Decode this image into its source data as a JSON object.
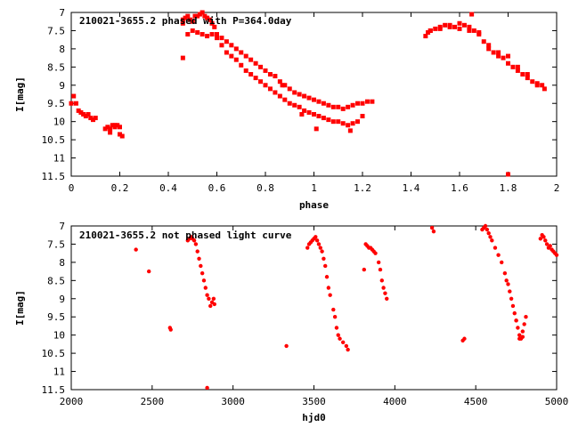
{
  "chart_data": [
    {
      "type": "scatter",
      "title": "210021-3655.2 phased with P=364.0day",
      "xlabel": "phase",
      "ylabel": "I[mag]",
      "xlim": [
        0,
        2
      ],
      "ylim": [
        11.5,
        7
      ],
      "y_inverted": true,
      "xticks": [
        "0",
        "0.2",
        "0.4",
        "0.6",
        "0.8",
        "1",
        "1.2",
        "1.4",
        "1.6",
        "1.8",
        "2"
      ],
      "yticks": [
        "7",
        "7.5",
        "8",
        "8.5",
        "9",
        "9.5",
        "10",
        "10.5",
        "11",
        "11.5"
      ],
      "grid": false,
      "marker_color": "#ff0000",
      "series": [
        {
          "x": [
            0.0,
            0.01,
            0.02,
            0.03,
            0.04,
            0.05,
            0.06,
            0.07,
            0.08,
            0.09,
            0.1,
            0.14,
            0.15,
            0.16,
            0.17,
            0.18,
            0.19,
            0.2,
            0.2,
            0.21,
            0.16,
            0.18,
            0.46,
            0.46,
            0.47,
            0.48,
            0.49,
            0.5,
            0.51,
            0.52,
            0.53,
            0.54,
            0.55,
            0.56,
            0.57,
            0.58,
            0.59,
            0.6,
            0.62,
            0.64,
            0.66,
            0.68,
            0.7,
            0.72,
            0.74,
            0.76,
            0.78,
            0.8,
            0.82,
            0.84,
            0.86,
            0.88,
            0.9,
            0.92,
            0.94,
            0.96,
            0.98,
            1.0,
            1.02,
            1.04,
            1.06,
            1.08,
            1.1,
            1.12,
            1.14,
            1.16,
            1.18,
            1.2,
            1.22,
            1.24,
            0.48,
            0.5,
            0.52,
            0.54,
            0.56,
            0.58,
            0.6,
            0.62,
            0.64,
            0.66,
            0.68,
            0.7,
            0.72,
            0.74,
            0.76,
            0.78,
            0.8,
            0.82,
            0.84,
            0.86,
            0.88,
            0.9,
            0.92,
            0.94,
            0.96,
            0.98,
            1.0,
            1.02,
            1.04,
            1.06,
            1.08,
            1.1,
            1.12,
            1.14,
            1.16,
            1.18,
            1.2,
            0.46,
            0.87,
            0.95,
            1.01,
            1.15,
            1.46,
            1.47,
            1.48,
            1.5,
            1.52,
            1.54,
            1.56,
            1.58,
            1.6,
            1.62,
            1.64,
            1.65,
            1.66,
            1.68,
            1.7,
            1.72,
            1.74,
            1.76,
            1.78,
            1.8,
            1.82,
            1.84,
            1.86,
            1.88,
            1.9,
            1.92,
            1.94,
            1.95,
            1.48,
            1.52,
            1.56,
            1.6,
            1.64,
            1.68,
            1.72,
            1.76,
            1.8,
            1.84,
            1.88,
            1.92,
            1.8
          ],
          "y": [
            9.5,
            9.3,
            9.5,
            9.7,
            9.75,
            9.8,
            9.85,
            9.8,
            9.9,
            9.95,
            9.9,
            10.2,
            10.15,
            10.2,
            10.1,
            10.15,
            10.1,
            10.15,
            10.35,
            10.4,
            10.3,
            10.1,
            7.2,
            7.3,
            7.15,
            7.1,
            7.2,
            7.25,
            7.1,
            7.1,
            7.05,
            7.0,
            7.1,
            7.15,
            7.2,
            7.3,
            7.4,
            7.6,
            7.7,
            7.8,
            7.9,
            8.0,
            8.1,
            8.2,
            8.3,
            8.4,
            8.5,
            8.6,
            8.7,
            8.75,
            8.9,
            9.0,
            9.1,
            9.2,
            9.25,
            9.3,
            9.35,
            9.4,
            9.45,
            9.5,
            9.55,
            9.6,
            9.6,
            9.65,
            9.6,
            9.55,
            9.5,
            9.5,
            9.45,
            9.45,
            7.6,
            7.5,
            7.55,
            7.6,
            7.65,
            7.6,
            7.7,
            7.9,
            8.1,
            8.2,
            8.3,
            8.45,
            8.6,
            8.7,
            8.8,
            8.9,
            9.0,
            9.1,
            9.2,
            9.3,
            9.4,
            9.5,
            9.55,
            9.6,
            9.7,
            9.75,
            9.8,
            9.85,
            9.9,
            9.95,
            10.0,
            10.0,
            10.05,
            10.1,
            10.05,
            10.0,
            9.85,
            8.25,
            9.0,
            9.8,
            10.2,
            10.25,
            7.65,
            7.55,
            7.5,
            7.45,
            7.4,
            7.35,
            7.4,
            7.4,
            7.3,
            7.35,
            7.4,
            7.05,
            7.5,
            7.6,
            7.8,
            8.0,
            8.1,
            8.2,
            8.25,
            8.4,
            8.5,
            8.6,
            8.7,
            8.8,
            8.9,
            9.0,
            9.0,
            9.1,
            7.5,
            7.45,
            7.35,
            7.45,
            7.5,
            7.55,
            7.9,
            8.1,
            8.2,
            8.5,
            8.7,
            8.95,
            11.45
          ]
        }
      ]
    },
    {
      "type": "scatter",
      "title": "210021-3655.2 not phased light curve",
      "xlabel": "hjd0",
      "ylabel": "I[mag]",
      "xlim": [
        2000,
        5000
      ],
      "ylim": [
        11.5,
        7
      ],
      "y_inverted": true,
      "xticks": [
        "2000",
        "2500",
        "3000",
        "3500",
        "4000",
        "4500",
        "5000"
      ],
      "yticks": [
        "7",
        "7.5",
        "8",
        "8.5",
        "9",
        "9.5",
        "10",
        "10.5",
        "11",
        "11.5"
      ],
      "grid": false,
      "marker_color": "#ff0000",
      "series": [
        {
          "x": [
            2400,
            2480,
            2610,
            2615,
            2720,
            2730,
            2740,
            2750,
            2760,
            2770,
            2780,
            2790,
            2800,
            2810,
            2820,
            2830,
            2840,
            2850,
            2860,
            2870,
            2880,
            2885,
            2840,
            3330,
            3460,
            3470,
            3480,
            3490,
            3500,
            3510,
            3520,
            3530,
            3540,
            3550,
            3560,
            3570,
            3580,
            3590,
            3600,
            3620,
            3630,
            3640,
            3650,
            3660,
            3680,
            3700,
            3710,
            3810,
            3820,
            3830,
            3840,
            3850,
            3860,
            3870,
            3880,
            3900,
            3910,
            3920,
            3930,
            3940,
            3950,
            4230,
            4240,
            4420,
            4430,
            4540,
            4550,
            4560,
            4570,
            4580,
            4590,
            4600,
            4620,
            4640,
            4660,
            4680,
            4690,
            4700,
            4710,
            4720,
            4730,
            4740,
            4750,
            4760,
            4770,
            4780,
            4790,
            4800,
            4810,
            4750,
            4770,
            4790,
            4900,
            4910,
            4920,
            4930,
            4940,
            4950,
            4960,
            4970,
            4980,
            4990,
            5000
          ],
          "y": [
            7.65,
            8.25,
            9.8,
            9.85,
            7.4,
            7.35,
            7.3,
            7.35,
            7.4,
            7.5,
            7.7,
            7.9,
            8.1,
            8.3,
            8.5,
            8.7,
            8.9,
            9.0,
            9.2,
            9.1,
            9.0,
            9.15,
            11.45,
            10.3,
            7.6,
            7.5,
            7.45,
            7.4,
            7.35,
            7.3,
            7.4,
            7.5,
            7.6,
            7.7,
            7.9,
            8.1,
            8.4,
            8.7,
            8.9,
            9.3,
            9.5,
            9.8,
            10.0,
            10.1,
            10.2,
            10.3,
            10.4,
            8.2,
            7.5,
            7.55,
            7.6,
            7.6,
            7.65,
            7.7,
            7.75,
            8.0,
            8.2,
            8.5,
            8.7,
            8.85,
            9.0,
            7.05,
            7.15,
            10.15,
            10.1,
            7.1,
            7.05,
            7.0,
            7.1,
            7.2,
            7.3,
            7.4,
            7.6,
            7.8,
            8.0,
            8.3,
            8.5,
            8.6,
            8.8,
            9.0,
            9.2,
            9.4,
            9.6,
            9.8,
            10.0,
            10.1,
            9.9,
            9.7,
            9.5,
            9.6,
            10.1,
            10.05,
            7.35,
            7.25,
            7.3,
            7.4,
            7.5,
            7.6,
            7.55,
            7.65,
            7.7,
            7.75,
            7.8
          ]
        }
      ]
    }
  ]
}
